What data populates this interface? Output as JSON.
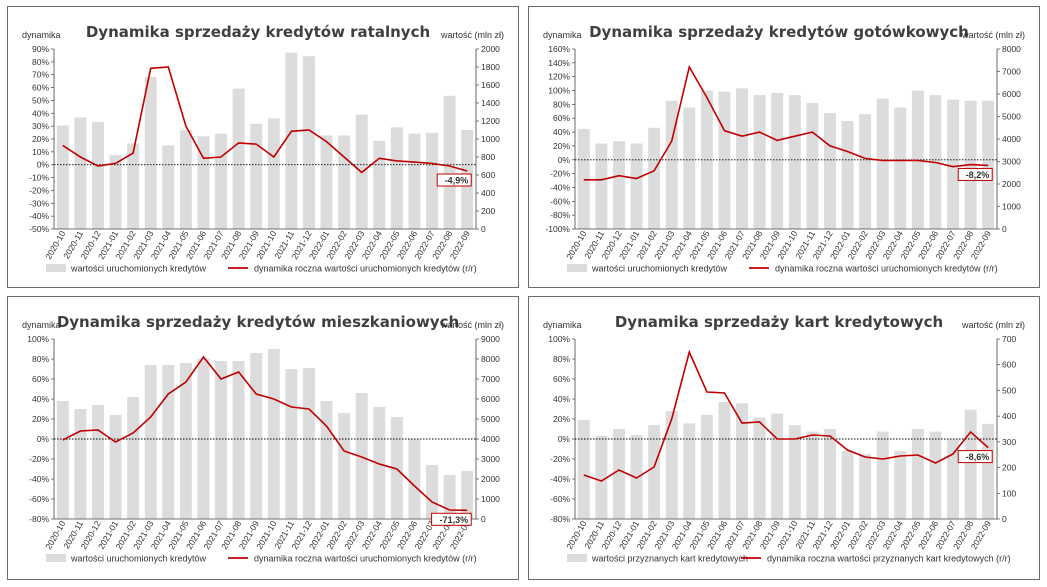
{
  "common": {
    "x_categories": [
      "2020-10",
      "2020-11",
      "2020-12",
      "2021-01",
      "2021-02",
      "2021-03",
      "2021-04",
      "2021-05",
      "2021-06",
      "2021-07",
      "2021-08",
      "2021-09",
      "2021-10",
      "2021-11",
      "2021-12",
      "2022-01",
      "2022-02",
      "2022-03",
      "2022-04",
      "2022-05",
      "2022-06",
      "2022-07",
      "2022-08",
      "2022-09"
    ],
    "left_axis_label": "dynamika",
    "right_axis_label": "wartość (mln zł)",
    "colors": {
      "bar": "#dcdcdc",
      "line": "#c00000",
      "zero_line": "#000000",
      "frame": "#6b6b6b"
    }
  },
  "chart_data": [
    {
      "type": "bar",
      "title": "Dynamika sprzedaży kredytów ratalnych",
      "ylabel_left": "dynamika",
      "ylabel_right": "wartość (mln zł)",
      "ylim_left": [
        -50,
        90
      ],
      "ylim_right": [
        0,
        2000
      ],
      "yticks_left": [
        -50,
        -40,
        -30,
        -20,
        -10,
        0,
        10,
        20,
        30,
        40,
        50,
        60,
        70,
        80,
        90
      ],
      "yticks_right": [
        0,
        200,
        400,
        600,
        800,
        1000,
        1200,
        1400,
        1600,
        1800,
        2000
      ],
      "series": [
        {
          "name": "wartości uruchomionych kredytów",
          "axis": "right",
          "kind": "bar",
          "values": [
            1150,
            1240,
            1190,
            820,
            950,
            1690,
            930,
            1100,
            1030,
            1060,
            1560,
            1170,
            1230,
            1960,
            1920,
            1040,
            1040,
            1270,
            980,
            1130,
            1060,
            1070,
            1480,
            1100
          ]
        },
        {
          "name": "dynamika roczna wartości uruchomionych kredytów (r/r)",
          "axis": "left",
          "kind": "line",
          "values": [
            15,
            6,
            -1,
            1,
            9,
            75,
            76,
            30,
            5,
            6,
            17,
            16,
            6,
            26,
            27,
            18,
            6,
            -6,
            5,
            3,
            2,
            1,
            -1,
            -4.9
          ]
        }
      ],
      "last_label": "-4,9%",
      "legend": [
        "wartości uruchomionych kredytów",
        "dynamika roczna wartości uruchomionych kredytów (r/r)"
      ],
      "legend_position": "bottom",
      "x_ticks": [
        "2020-10",
        "2020-11",
        "2020-12",
        "2021-01",
        "2021-02",
        "2021-03",
        "2021-04",
        "2021-05",
        "2021-06",
        "2021-07",
        "2021-08",
        "2021-09",
        "2021-10",
        "2021-11",
        "2021-12",
        "2022-01",
        "2022-02",
        "2022-03",
        "2022-04",
        "2022-05",
        "2022-06",
        "2022-07",
        "2022-08",
        "2022-09"
      ]
    },
    {
      "type": "bar",
      "title": "Dynamika sprzedaży kredytów gotówkowych",
      "ylabel_left": "dynamika",
      "ylabel_right": "wartość (mln zł)",
      "ylim_left": [
        -100,
        160
      ],
      "ylim_right": [
        0,
        8000
      ],
      "yticks_left": [
        -100,
        -80,
        -60,
        -40,
        -20,
        0,
        20,
        40,
        60,
        80,
        100,
        120,
        140,
        160
      ],
      "yticks_right": [
        0,
        1000,
        2000,
        3000,
        4000,
        5000,
        6000,
        7000,
        8000
      ],
      "series": [
        {
          "name": "wartości uruchomionych kredytów",
          "axis": "right",
          "kind": "bar",
          "values": [
            4450,
            3800,
            3900,
            3800,
            4500,
            5700,
            5400,
            6150,
            6100,
            6250,
            5950,
            6050,
            5950,
            5600,
            5150,
            4800,
            5100,
            5800,
            5400,
            6150,
            5950,
            5750,
            5700,
            5700
          ]
        },
        {
          "name": "dynamika roczna wartości uruchomionych kredytów (r/r)",
          "axis": "left",
          "kind": "line",
          "values": [
            -29,
            -29,
            -23,
            -27,
            -16,
            27,
            134,
            90,
            42,
            34,
            40,
            28,
            34,
            40,
            20,
            12,
            2,
            -1,
            -1,
            -1,
            -4,
            -10,
            -7,
            -8.2
          ]
        }
      ],
      "last_label": "-8,2%",
      "legend": [
        "wartości uruchomionych kredytów",
        "dynamika roczna wartości uruchomionych kredytów (r/r)"
      ],
      "legend_position": "bottom",
      "x_ticks": [
        "2020-10",
        "2020-11",
        "2020-12",
        "2021-01",
        "2021-02",
        "2021-03",
        "2021-04",
        "2021-05",
        "2021-06",
        "2021-07",
        "2021-08",
        "2021-09",
        "2021-10",
        "2021-11",
        "2021-12",
        "2022-01",
        "2022-02",
        "2022-03",
        "2022-04",
        "2022-05",
        "2022-06",
        "2022-07",
        "2022-08",
        "2022-09"
      ]
    },
    {
      "type": "bar",
      "title": "Dynamika sprzedaży kredytów mieszkaniowych",
      "ylabel_left": "dynamika",
      "ylabel_right": "wartość (mln zł)",
      "ylim_left": [
        -80,
        100
      ],
      "ylim_right": [
        0,
        9000
      ],
      "yticks_left": [
        -80,
        -60,
        -40,
        -20,
        0,
        20,
        40,
        60,
        80,
        100
      ],
      "yticks_right": [
        0,
        1000,
        2000,
        3000,
        4000,
        5000,
        6000,
        7000,
        8000,
        9000
      ],
      "series": [
        {
          "name": "wartości uruchomionych kredytów",
          "axis": "right",
          "kind": "bar",
          "values": [
            5900,
            5500,
            5700,
            5200,
            6100,
            7700,
            7700,
            7800,
            8000,
            7900,
            7900,
            8300,
            8500,
            7500,
            7550,
            5900,
            5300,
            6300,
            5600,
            5100,
            4000,
            2700,
            2200,
            2400
          ]
        },
        {
          "name": "dynamika roczna wartości uruchomionych kredytów (r/r)",
          "axis": "left",
          "kind": "line",
          "values": [
            -1,
            8,
            9,
            -3,
            6,
            22,
            45,
            57,
            82,
            60,
            67,
            45,
            40,
            32,
            30,
            13,
            -12,
            -18,
            -25,
            -30,
            -47,
            -63,
            -71,
            -71.3
          ]
        }
      ],
      "last_label": "-71,3%",
      "legend": [
        "wartości uruchomionych kredytów",
        "dynamika roczna wartości uruchomionych kredytów (r/r)"
      ],
      "legend_position": "bottom",
      "x_ticks": [
        "2020-10",
        "2020-11",
        "2020-12",
        "2021-01",
        "2021-02",
        "2021-03",
        "2021-04",
        "2021-05",
        "2021-06",
        "2021-07",
        "2021-08",
        "2021-09",
        "2021-10",
        "2021-11",
        "2021-12",
        "2022-01",
        "2022-02",
        "2022-03",
        "2022-04",
        "2022-05",
        "2022-06",
        "2022-07",
        "2022-08",
        "2022-09"
      ]
    },
    {
      "type": "bar",
      "title": "Dynamika sprzedaży kart kredytowych",
      "ylabel_left": "dynamika",
      "ylabel_right": "wartość (mln zł)",
      "ylim_left": [
        -80,
        100
      ],
      "ylim_right": [
        0,
        700
      ],
      "yticks_left": [
        -80,
        -60,
        -40,
        -20,
        0,
        20,
        40,
        60,
        80,
        100
      ],
      "yticks_right": [
        0,
        100,
        200,
        300,
        400,
        500,
        600,
        700
      ],
      "series": [
        {
          "name": "wartości przyznanych kart kredytowych",
          "axis": "right",
          "kind": "bar",
          "values": [
            385,
            323,
            350,
            326,
            365,
            420,
            372,
            405,
            455,
            450,
            395,
            410,
            365,
            340,
            350,
            265,
            252,
            340,
            265,
            350,
            340,
            310,
            425,
            370
          ]
        },
        {
          "name": "dynamika roczna wartości przyznanych kart kredytowych (r/r)",
          "axis": "left",
          "kind": "line",
          "values": [
            -36,
            -42,
            -31,
            -39,
            -28,
            20,
            87,
            47,
            46,
            16,
            17,
            0,
            0,
            4,
            3,
            -11,
            -18,
            -20,
            -17,
            -16,
            -24,
            -15,
            7,
            -8.6
          ]
        }
      ],
      "last_label": "-8,6%",
      "legend": [
        "wartości przyznanych kart kredytowych",
        "dynamika roczna wartości przyznanych kart kredytowych (r/r)"
      ],
      "legend_position": "bottom",
      "x_ticks": [
        "2020-10",
        "2020-11",
        "2020-12",
        "2021-01",
        "2021-02",
        "2021-03",
        "2021-04",
        "2021-05",
        "2021-06",
        "2021-07",
        "2021-08",
        "2021-09",
        "2021-10",
        "2021-11",
        "2021-12",
        "2022-01",
        "2022-02",
        "2022-03",
        "2022-04",
        "2022-05",
        "2022-06",
        "2022-07",
        "2022-08",
        "2022-09"
      ]
    }
  ]
}
